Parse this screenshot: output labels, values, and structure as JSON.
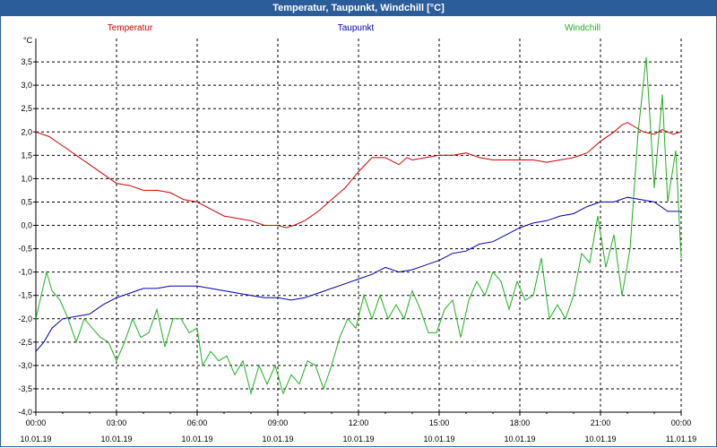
{
  "window": {
    "title": "Temperatur, Taupunkt, Windchill [°C]"
  },
  "chart_data": {
    "type": "line",
    "title": "Temperatur, Taupunkt, Windchill [°C]",
    "ylabel": "°C",
    "ylim": [
      -4.0,
      4.0
    ],
    "xlim": [
      0,
      24
    ],
    "grid": true,
    "y_ticks": [
      {
        "value": 3.5,
        "label": "3,5"
      },
      {
        "value": 3.0,
        "label": "3,0"
      },
      {
        "value": 2.5,
        "label": "2,5"
      },
      {
        "value": 2.0,
        "label": "2,0"
      },
      {
        "value": 1.5,
        "label": "1,5"
      },
      {
        "value": 1.0,
        "label": "1,0"
      },
      {
        "value": 0.5,
        "label": "0,5"
      },
      {
        "value": 0.0,
        "label": "0,0"
      },
      {
        "value": -0.5,
        "label": "-0,5"
      },
      {
        "value": -1.0,
        "label": "-1,0"
      },
      {
        "value": -1.5,
        "label": "-1,5"
      },
      {
        "value": -2.0,
        "label": "-2,0"
      },
      {
        "value": -2.5,
        "label": "-2,5"
      },
      {
        "value": -3.0,
        "label": "-3,0"
      },
      {
        "value": -3.5,
        "label": "-3,5"
      },
      {
        "value": -4.0,
        "label": "-4,0"
      }
    ],
    "x_ticks": [
      {
        "hour": 0,
        "time": "00:00",
        "date": "10.01.19"
      },
      {
        "hour": 3,
        "time": "03:00",
        "date": "10.01.19"
      },
      {
        "hour": 6,
        "time": "06:00",
        "date": "10.01.19"
      },
      {
        "hour": 9,
        "time": "09:00",
        "date": "10.01.19"
      },
      {
        "hour": 12,
        "time": "12:00",
        "date": "10.01.19"
      },
      {
        "hour": 15,
        "time": "15:00",
        "date": "10.01.19"
      },
      {
        "hour": 18,
        "time": "18:00",
        "date": "10.01.19"
      },
      {
        "hour": 21,
        "time": "21:00",
        "date": "10.01.19"
      },
      {
        "hour": 24,
        "time": "00:00",
        "date": "11.01.19"
      }
    ],
    "legend": [
      {
        "name": "Temperatur",
        "color": "#d00000",
        "position": "top-left"
      },
      {
        "name": "Taupunkt",
        "color": "#0000b0",
        "position": "top-center"
      },
      {
        "name": "Windchill",
        "color": "#20b020",
        "position": "top-right"
      }
    ],
    "series": [
      {
        "name": "Temperatur",
        "color": "#d00000",
        "points": [
          [
            0,
            2.0
          ],
          [
            0.5,
            1.9
          ],
          [
            1,
            1.7
          ],
          [
            1.5,
            1.5
          ],
          [
            2,
            1.3
          ],
          [
            2.5,
            1.1
          ],
          [
            3,
            0.9
          ],
          [
            3.5,
            0.85
          ],
          [
            4,
            0.75
          ],
          [
            4.5,
            0.75
          ],
          [
            5,
            0.7
          ],
          [
            5.5,
            0.55
          ],
          [
            6,
            0.5
          ],
          [
            6.5,
            0.35
          ],
          [
            7,
            0.2
          ],
          [
            7.5,
            0.15
          ],
          [
            8,
            0.1
          ],
          [
            8.5,
            0.0
          ],
          [
            9,
            0.0
          ],
          [
            9.3,
            -0.05
          ],
          [
            9.6,
            0.0
          ],
          [
            10,
            0.1
          ],
          [
            10.5,
            0.3
          ],
          [
            11,
            0.55
          ],
          [
            11.5,
            0.8
          ],
          [
            12,
            1.15
          ],
          [
            12.5,
            1.45
          ],
          [
            13,
            1.45
          ],
          [
            13.5,
            1.3
          ],
          [
            13.8,
            1.45
          ],
          [
            14,
            1.4
          ],
          [
            14.5,
            1.45
          ],
          [
            15,
            1.5
          ],
          [
            15.5,
            1.5
          ],
          [
            16,
            1.55
          ],
          [
            16.5,
            1.45
          ],
          [
            17,
            1.4
          ],
          [
            17.5,
            1.4
          ],
          [
            18,
            1.4
          ],
          [
            18.5,
            1.4
          ],
          [
            19,
            1.35
          ],
          [
            19.5,
            1.4
          ],
          [
            20,
            1.45
          ],
          [
            20.5,
            1.55
          ],
          [
            21,
            1.8
          ],
          [
            21.5,
            2.0
          ],
          [
            21.8,
            2.15
          ],
          [
            22,
            2.2
          ],
          [
            22.3,
            2.1
          ],
          [
            22.6,
            2.0
          ],
          [
            23,
            1.95
          ],
          [
            23.3,
            2.05
          ],
          [
            23.7,
            1.95
          ],
          [
            24,
            2.0
          ]
        ]
      },
      {
        "name": "Taupunkt",
        "color": "#0000b0",
        "points": [
          [
            0,
            -2.7
          ],
          [
            0.3,
            -2.5
          ],
          [
            0.6,
            -2.2
          ],
          [
            1,
            -2.0
          ],
          [
            1.5,
            -1.95
          ],
          [
            2,
            -1.9
          ],
          [
            2.5,
            -1.7
          ],
          [
            3,
            -1.55
          ],
          [
            3.5,
            -1.45
          ],
          [
            4,
            -1.35
          ],
          [
            4.5,
            -1.35
          ],
          [
            5,
            -1.3
          ],
          [
            5.5,
            -1.3
          ],
          [
            6,
            -1.3
          ],
          [
            6.5,
            -1.35
          ],
          [
            7,
            -1.4
          ],
          [
            7.5,
            -1.45
          ],
          [
            8,
            -1.5
          ],
          [
            8.5,
            -1.55
          ],
          [
            9,
            -1.55
          ],
          [
            9.5,
            -1.6
          ],
          [
            10,
            -1.55
          ],
          [
            10.5,
            -1.45
          ],
          [
            11,
            -1.35
          ],
          [
            11.5,
            -1.25
          ],
          [
            12,
            -1.15
          ],
          [
            12.5,
            -1.05
          ],
          [
            13,
            -0.9
          ],
          [
            13.5,
            -1.0
          ],
          [
            14,
            -0.95
          ],
          [
            14.5,
            -0.85
          ],
          [
            15,
            -0.75
          ],
          [
            15.5,
            -0.6
          ],
          [
            16,
            -0.55
          ],
          [
            16.5,
            -0.4
          ],
          [
            17,
            -0.35
          ],
          [
            17.5,
            -0.2
          ],
          [
            18,
            -0.05
          ],
          [
            18.5,
            0.05
          ],
          [
            19,
            0.1
          ],
          [
            19.5,
            0.2
          ],
          [
            20,
            0.25
          ],
          [
            20.5,
            0.4
          ],
          [
            21,
            0.5
          ],
          [
            21.5,
            0.5
          ],
          [
            22,
            0.6
          ],
          [
            22.5,
            0.55
          ],
          [
            23,
            0.5
          ],
          [
            23.5,
            0.3
          ],
          [
            24,
            0.3
          ]
        ]
      },
      {
        "name": "Windchill",
        "color": "#20b020",
        "points": [
          [
            0,
            -2.0
          ],
          [
            0.2,
            -1.5
          ],
          [
            0.4,
            -1.0
          ],
          [
            0.6,
            -1.4
          ],
          [
            0.9,
            -1.6
          ],
          [
            1.2,
            -2.0
          ],
          [
            1.5,
            -2.5
          ],
          [
            1.8,
            -2.0
          ],
          [
            2.1,
            -2.2
          ],
          [
            2.4,
            -2.4
          ],
          [
            2.7,
            -2.5
          ],
          [
            3,
            -2.9
          ],
          [
            3.3,
            -2.5
          ],
          [
            3.6,
            -2.0
          ],
          [
            3.9,
            -2.4
          ],
          [
            4.2,
            -2.3
          ],
          [
            4.5,
            -1.8
          ],
          [
            4.8,
            -2.6
          ],
          [
            5.1,
            -2.0
          ],
          [
            5.4,
            -2.0
          ],
          [
            5.7,
            -2.3
          ],
          [
            6,
            -2.2
          ],
          [
            6.2,
            -3.0
          ],
          [
            6.5,
            -2.7
          ],
          [
            6.8,
            -2.9
          ],
          [
            7.1,
            -2.8
          ],
          [
            7.4,
            -3.2
          ],
          [
            7.7,
            -2.9
          ],
          [
            8,
            -3.6
          ],
          [
            8.3,
            -3.0
          ],
          [
            8.6,
            -3.4
          ],
          [
            8.9,
            -3.0
          ],
          [
            9.2,
            -3.6
          ],
          [
            9.5,
            -3.2
          ],
          [
            9.8,
            -3.4
          ],
          [
            10.1,
            -2.9
          ],
          [
            10.4,
            -3.0
          ],
          [
            10.7,
            -3.5
          ],
          [
            11,
            -3.0
          ],
          [
            11.3,
            -2.4
          ],
          [
            11.6,
            -2.0
          ],
          [
            11.9,
            -2.2
          ],
          [
            12.2,
            -1.5
          ],
          [
            12.5,
            -2.0
          ],
          [
            12.8,
            -1.5
          ],
          [
            13.1,
            -2.0
          ],
          [
            13.4,
            -1.7
          ],
          [
            13.7,
            -2.0
          ],
          [
            14,
            -1.4
          ],
          [
            14.3,
            -1.8
          ],
          [
            14.6,
            -2.3
          ],
          [
            14.9,
            -2.3
          ],
          [
            15.2,
            -1.8
          ],
          [
            15.5,
            -1.6
          ],
          [
            15.8,
            -2.4
          ],
          [
            16.1,
            -1.6
          ],
          [
            16.4,
            -1.2
          ],
          [
            16.7,
            -1.5
          ],
          [
            17,
            -1.0
          ],
          [
            17.3,
            -1.2
          ],
          [
            17.6,
            -1.8
          ],
          [
            17.9,
            -1.2
          ],
          [
            18.2,
            -1.6
          ],
          [
            18.5,
            -1.5
          ],
          [
            18.8,
            -0.7
          ],
          [
            19.1,
            -2.0
          ],
          [
            19.4,
            -1.7
          ],
          [
            19.7,
            -2.0
          ],
          [
            20,
            -1.5
          ],
          [
            20.3,
            -0.6
          ],
          [
            20.6,
            -0.8
          ],
          [
            20.9,
            0.2
          ],
          [
            21.2,
            -0.9
          ],
          [
            21.5,
            -0.2
          ],
          [
            21.8,
            -1.5
          ],
          [
            22.1,
            -0.5
          ],
          [
            22.4,
            2.0
          ],
          [
            22.7,
            3.6
          ],
          [
            23,
            0.8
          ],
          [
            23.3,
            2.8
          ],
          [
            23.5,
            0.5
          ],
          [
            23.8,
            1.6
          ],
          [
            24,
            -0.7
          ]
        ]
      }
    ]
  }
}
